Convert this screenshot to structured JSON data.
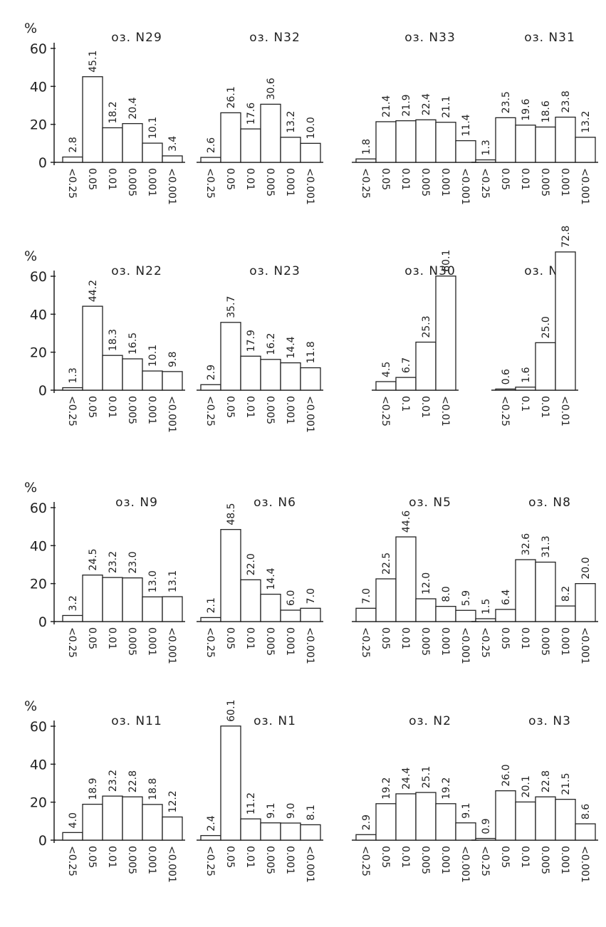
{
  "chart_data": [
    {
      "type": "bar",
      "title": "оз. N29",
      "y_label": "%",
      "ylim": [
        0,
        60
      ],
      "yticks": [
        0,
        20,
        40,
        60
      ],
      "categories": [
        "<0.25",
        "0.05",
        "0.01",
        "0.005",
        "0.001",
        "<0.001"
      ],
      "values": [
        2.8,
        45.1,
        18.2,
        20.4,
        10.1,
        3.4
      ],
      "color": "#ffffff"
    },
    {
      "type": "bar",
      "title": "оз. N32",
      "ylim": [
        0,
        60
      ],
      "categories": [
        "<0.25",
        "0.05",
        "0.01",
        "0.005",
        "0.001",
        "<0.001"
      ],
      "values": [
        2.6,
        26.1,
        17.6,
        30.6,
        13.2,
        10.0
      ],
      "value_labels": [
        "2.6",
        "26.1",
        "17.6",
        "30.6",
        "13.2",
        "10.0"
      ],
      "color": "#ffffff"
    },
    {
      "type": "bar",
      "title": "оз. N33",
      "ylim": [
        0,
        60
      ],
      "categories": [
        "<0.25",
        "0.05",
        "0.01",
        "0.005",
        "0.001",
        "<0.001"
      ],
      "values": [
        1.8,
        21.4,
        21.9,
        22.4,
        21.1,
        11.4
      ],
      "color": "#ffffff"
    },
    {
      "type": "bar",
      "title": "оз. N31",
      "ylim": [
        0,
        60
      ],
      "categories": [
        "<0.25",
        "0.05",
        "0.01",
        "0.005",
        "0.001",
        "<0.001"
      ],
      "values": [
        1.3,
        23.5,
        19.6,
        18.6,
        23.8,
        13.2
      ],
      "color": "#ffffff"
    },
    {
      "type": "bar",
      "title": "оз. N22",
      "y_label": "%",
      "ylim": [
        0,
        60
      ],
      "yticks": [
        0,
        20,
        40,
        60
      ],
      "categories": [
        "<0.25",
        "0.05",
        "0.01",
        "0.005",
        "0.001",
        "<0.001"
      ],
      "values": [
        1.3,
        44.2,
        18.3,
        16.5,
        10.1,
        9.8
      ],
      "color": "#ffffff"
    },
    {
      "type": "bar",
      "title": "оз. N23",
      "ylim": [
        0,
        60
      ],
      "categories": [
        "<0.25",
        "0.05",
        "0.01",
        "0.005",
        "0.001",
        "<0.001"
      ],
      "values": [
        2.9,
        35.7,
        17.9,
        16.2,
        14.4,
        11.8
      ],
      "color": "#ffffff"
    },
    {
      "type": "bar",
      "title": "оз. N30",
      "ylim": [
        0,
        60
      ],
      "categories": [
        "<0.25",
        "0.1",
        "0.01",
        "<0.01"
      ],
      "values": [
        4.5,
        6.7,
        25.3,
        60.1
      ],
      "color": "#ffffff"
    },
    {
      "type": "bar",
      "title": "оз. N26",
      "ylim": [
        0,
        60
      ],
      "categories": [
        "<0.25",
        "0.1",
        "0.01",
        "<0.01"
      ],
      "values": [
        0.6,
        1.6,
        25.0,
        72.8
      ],
      "value_labels": [
        "0.6",
        "1.6",
        "25.0",
        "72.8"
      ],
      "color": "#ffffff"
    },
    {
      "type": "bar",
      "title": "оз. N9",
      "y_label": "%",
      "ylim": [
        0,
        60
      ],
      "yticks": [
        0,
        20,
        40,
        60
      ],
      "categories": [
        "<0.25",
        "0.05",
        "0.01",
        "0.005",
        "0.001",
        "<0.001"
      ],
      "values": [
        3.2,
        24.5,
        23.2,
        23.0,
        13.0,
        13.1
      ],
      "value_labels": [
        "3.2",
        "24.5",
        "23.2",
        "23.0",
        "13.0",
        "13.1"
      ],
      "color": "#ffffff"
    },
    {
      "type": "bar",
      "title": "оз. N6",
      "ylim": [
        0,
        60
      ],
      "categories": [
        "<0.25",
        "0.05",
        "0.01",
        "0.005",
        "0.001",
        "<0.001"
      ],
      "values": [
        2.1,
        48.5,
        22.0,
        14.4,
        6.0,
        7.0
      ],
      "value_labels": [
        "2.1",
        "48.5",
        "22.0",
        "14.4",
        "6.0",
        "7.0"
      ],
      "color": "#ffffff"
    },
    {
      "type": "bar",
      "title": "оз. N5",
      "ylim": [
        0,
        60
      ],
      "categories": [
        "<0.25",
        "0.05",
        "0.01",
        "0.005",
        "0.001",
        "<0.001"
      ],
      "values": [
        7.0,
        22.5,
        44.6,
        12.0,
        8.0,
        5.9
      ],
      "value_labels": [
        "7.0",
        "22.5",
        "44.6",
        "12.0",
        "8.0",
        "5.9"
      ],
      "color": "#ffffff"
    },
    {
      "type": "bar",
      "title": "оз. N8",
      "ylim": [
        0,
        60
      ],
      "categories": [
        "<0.25",
        "0.05",
        "0.01",
        "0.005",
        "0.001",
        "<0.001"
      ],
      "values": [
        1.5,
        6.4,
        32.6,
        31.3,
        8.2,
        20.0
      ],
      "value_labels": [
        "1.5",
        "6.4",
        "32.6",
        "31.3",
        "8.2",
        "20.0"
      ],
      "color": "#ffffff"
    },
    {
      "type": "bar",
      "title": "оз. N11",
      "y_label": "%",
      "ylim": [
        0,
        60
      ],
      "yticks": [
        0,
        20,
        40,
        60
      ],
      "categories": [
        "<0.25",
        "0.05",
        "0.01",
        "0.005",
        "0.001",
        "<0.001"
      ],
      "values": [
        4.0,
        18.9,
        23.2,
        22.8,
        18.8,
        12.2
      ],
      "value_labels": [
        "4.0",
        "18.9",
        "23.2",
        "22.8",
        "18.8",
        "12.2"
      ],
      "color": "#ffffff"
    },
    {
      "type": "bar",
      "title": "оз. N1",
      "ylim": [
        0,
        60
      ],
      "categories": [
        "<0.25",
        "0.05",
        "0.01",
        "0.005",
        "0.001",
        "<0.001"
      ],
      "values": [
        2.4,
        60.1,
        11.2,
        9.1,
        9.0,
        8.1
      ],
      "value_labels": [
        "2.4",
        "60.1",
        "11.2",
        "9.1",
        "9.0",
        "8.1"
      ],
      "color": "#ffffff"
    },
    {
      "type": "bar",
      "title": "оз. N2",
      "ylim": [
        0,
        60
      ],
      "categories": [
        "<0.25",
        "0.05",
        "0.01",
        "0.005",
        "0.001",
        "<0.001"
      ],
      "values": [
        2.9,
        19.2,
        24.4,
        25.1,
        19.2,
        9.1
      ],
      "color": "#ffffff"
    },
    {
      "type": "bar",
      "title": "оз. N3",
      "ylim": [
        0,
        60
      ],
      "categories": [
        "<0.25",
        "0.05",
        "0.01",
        "0.005",
        "0.001",
        "<0.001"
      ],
      "values": [
        0.9,
        26.0,
        20.1,
        22.8,
        21.5,
        8.6
      ],
      "value_labels": [
        "0.9",
        "26.0",
        "20.1",
        "22.8",
        "21.5",
        "8.6"
      ],
      "color": "#ffffff"
    }
  ]
}
